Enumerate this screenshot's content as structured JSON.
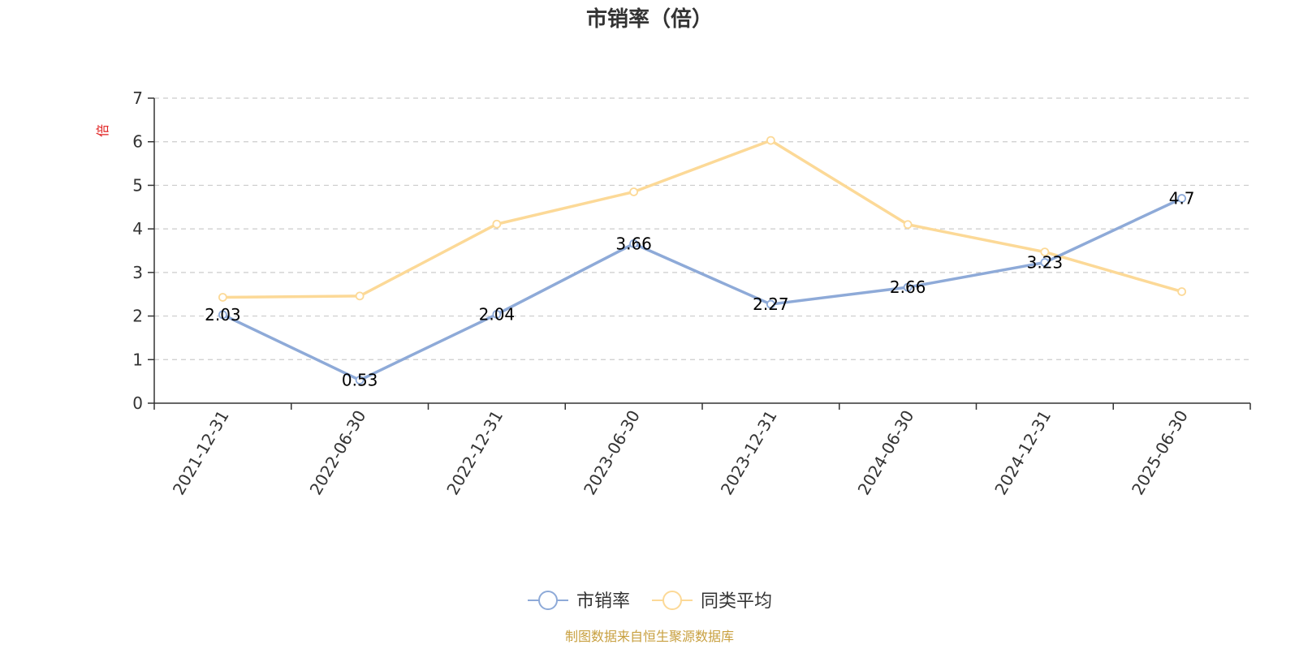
{
  "chart_data": {
    "type": "line",
    "title": "市销率（倍）",
    "ylabel": "倍",
    "ylim": [
      0,
      7
    ],
    "yticks": [
      0,
      1,
      2,
      3,
      4,
      5,
      6,
      7
    ],
    "grid": true,
    "categories": [
      "2021-12-31",
      "2022-06-30",
      "2022-12-31",
      "2023-06-30",
      "2023-12-31",
      "2024-06-30",
      "2024-12-31",
      "2025-06-30"
    ],
    "series": [
      {
        "name": "市销率",
        "values": [
          2.03,
          0.53,
          2.04,
          3.66,
          2.27,
          2.66,
          3.23,
          4.7
        ],
        "color": "#8eaad8",
        "data_labels": [
          "2.03",
          "0.53",
          "2.04",
          "3.66",
          "2.27",
          "2.66",
          "3.23",
          "4.7"
        ]
      },
      {
        "name": "同类平均",
        "values": [
          2.43,
          2.46,
          4.11,
          4.85,
          6.03,
          4.1,
          3.47,
          2.56
        ],
        "color": "#fcd997"
      }
    ],
    "legend_position": "bottom-center",
    "ylabel_color": "#e02020"
  },
  "footer": {
    "source": "制图数据来自恒生聚源数据库",
    "source_color": "#c8a040"
  }
}
